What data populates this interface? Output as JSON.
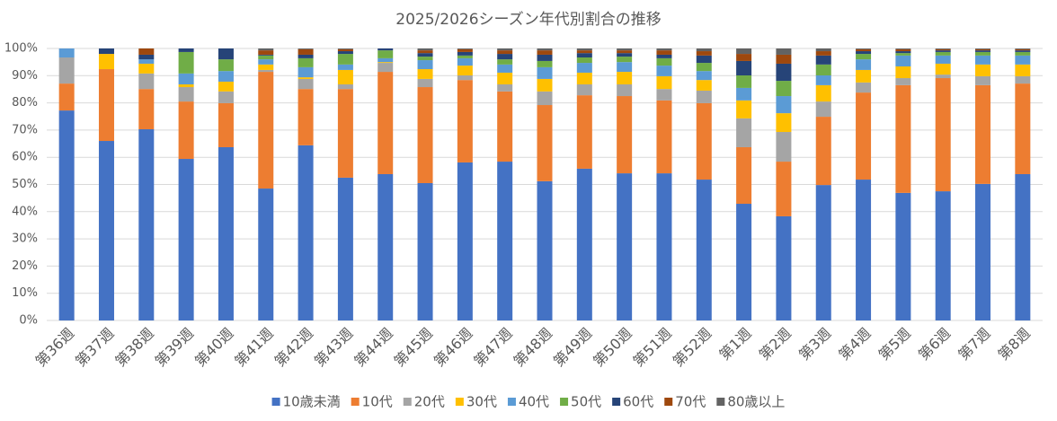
{
  "chart_data": {
    "type": "stacked_bar",
    "title": "2025/2026シーズン年代別割合の推移",
    "categories": [
      "第36週",
      "第37週",
      "第38週",
      "第39週",
      "第40週",
      "第41週",
      "第42週",
      "第43週",
      "第44週",
      "第45週",
      "第46週",
      "第47週",
      "第48週",
      "第49週",
      "第50週",
      "第51週",
      "第52週",
      "第1週",
      "第2週",
      "第3週",
      "第4週",
      "第5週",
      "第6週",
      "第7週",
      "第8週"
    ],
    "series": [
      {
        "name": "10歳未満",
        "color": "#4472c4",
        "values": [
          77.2,
          66,
          70.3,
          59.4,
          63.7,
          48.5,
          64.4,
          52.5,
          53.8,
          50.5,
          58.1,
          58.4,
          51.2,
          55.8,
          54.1,
          54.1,
          51.8,
          42.9,
          38.3,
          49.8,
          51.8,
          46.9,
          47.5,
          50.2,
          53.8
        ]
      },
      {
        "name": "10代",
        "color": "#ed7d31",
        "values": [
          9.9,
          26.4,
          14.8,
          21.1,
          16.2,
          42.9,
          20.7,
          32.6,
          37.6,
          35.3,
          30.3,
          25.8,
          28,
          27,
          28.4,
          26.8,
          28.1,
          20.8,
          20.1,
          25.1,
          32,
          39.6,
          41.6,
          36.3,
          33.3
        ]
      },
      {
        "name": "20代",
        "color": "#a5a5a5",
        "values": [
          9.6,
          0,
          5.7,
          5.3,
          4.3,
          0.7,
          3.7,
          1.7,
          3.3,
          3,
          1.7,
          2.6,
          5,
          4,
          4.3,
          4.2,
          4.6,
          10.6,
          10.9,
          5.6,
          3.7,
          2.6,
          1.3,
          3.3,
          2.7
        ]
      },
      {
        "name": "30代",
        "color": "#ffc000",
        "values": [
          0,
          5.6,
          3.6,
          1,
          3.6,
          2,
          0.6,
          5.3,
          0.3,
          3.6,
          3.6,
          4.3,
          4.6,
          4.3,
          4.6,
          4.7,
          3.9,
          6.6,
          6.9,
          6,
          4.6,
          4.3,
          4,
          4.3,
          4.3
        ]
      },
      {
        "name": "40代",
        "color": "#5b9bd5",
        "values": [
          3.3,
          0,
          1.6,
          4,
          3.9,
          1.9,
          3.7,
          2,
          1.4,
          3.3,
          2.7,
          3,
          4.3,
          3.6,
          3.6,
          3.9,
          3.3,
          4.6,
          6.3,
          3.6,
          3.9,
          4,
          3,
          3.3,
          3.3
        ]
      },
      {
        "name": "50代",
        "color": "#70ad47",
        "values": [
          0,
          0,
          0,
          7.9,
          4.3,
          1.4,
          3.3,
          3.9,
          2.9,
          1.3,
          1,
          1.9,
          2.3,
          2,
          2,
          2.7,
          3,
          4.6,
          5.6,
          4,
          2,
          0.9,
          1.3,
          1.3,
          1.3
        ]
      },
      {
        "name": "60代",
        "color": "#264478",
        "values": [
          0,
          2,
          1.7,
          1.3,
          4,
          0.3,
          1.3,
          1,
          0.7,
          1.3,
          1.3,
          2,
          2.3,
          1.6,
          1.3,
          1.3,
          2.7,
          5.3,
          6.3,
          3.3,
          1,
          0.7,
          0.6,
          0.6,
          0.6
        ]
      },
      {
        "name": "70代",
        "color": "#9e480e",
        "values": [
          0,
          0,
          2.3,
          0,
          0,
          1.6,
          2,
          0.7,
          0,
          1,
          1,
          1.3,
          1.6,
          1,
          1,
          1.6,
          1.6,
          2.6,
          3.3,
          1.6,
          0.7,
          0.7,
          0.4,
          0.4,
          0.4
        ]
      },
      {
        "name": "80歳以上",
        "color": "#636363",
        "values": [
          0,
          0,
          0,
          0,
          0,
          0.7,
          0.3,
          0.3,
          0,
          0.7,
          0.3,
          0.7,
          0.7,
          0.7,
          0.7,
          0.7,
          1,
          2,
          2.3,
          1,
          0.3,
          0.3,
          0.3,
          0.3,
          0.3
        ]
      }
    ],
    "ylim": [
      0,
      100
    ],
    "yticks": [
      {
        "value": 0,
        "label": "0%"
      },
      {
        "value": 10,
        "label": "10%"
      },
      {
        "value": 20,
        "label": "20%"
      },
      {
        "value": 30,
        "label": "30%"
      },
      {
        "value": 40,
        "label": "40%"
      },
      {
        "value": 50,
        "label": "50%"
      },
      {
        "value": 60,
        "label": "60%"
      },
      {
        "value": 70,
        "label": "70%"
      },
      {
        "value": 80,
        "label": "80%"
      },
      {
        "value": 90,
        "label": "90%"
      },
      {
        "value": 100,
        "label": "100%"
      }
    ],
    "grid": true,
    "legend": "bottom"
  }
}
